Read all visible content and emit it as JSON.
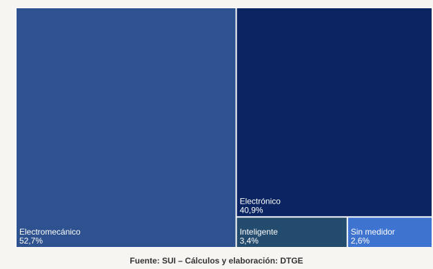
{
  "chart_data": {
    "type": "treemap",
    "title": "",
    "items": [
      {
        "name": "Electromecánico",
        "value_label": "52,7%",
        "value": 52.7,
        "color": "#2e528f"
      },
      {
        "name": "Electrónico",
        "value_label": "40,9%",
        "value": 40.9,
        "color": "#0b2562"
      },
      {
        "name": "Inteligente",
        "value_label": "3,4%",
        "value": 3.4,
        "color": "#234b6e"
      },
      {
        "name": "Sin medidor",
        "value_label": "2,6%",
        "value": 2.6,
        "color": "#3e74cf"
      }
    ]
  },
  "source": "Fuente: SUI – Cálculos y elaboración: DTGE"
}
